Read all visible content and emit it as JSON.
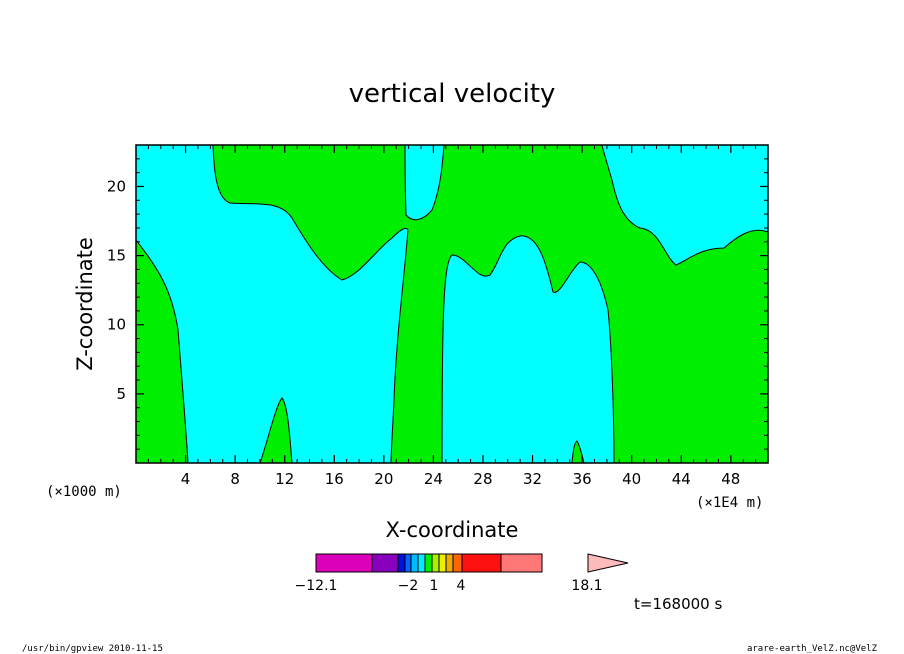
{
  "chart_data": {
    "type": "heatmap",
    "title": "vertical velocity",
    "xlabel": "X-coordinate",
    "ylabel": "Z-coordinate",
    "x_scale_note": "(×1E4 m)",
    "y_scale_note": "(×1000 m)",
    "xlim": [
      0,
      51
    ],
    "ylim": [
      0,
      23
    ],
    "xticks": [
      4,
      8,
      12,
      16,
      20,
      24,
      28,
      32,
      36,
      40,
      44,
      48
    ],
    "yticks": [
      5,
      10,
      15,
      20
    ],
    "fields": [
      {
        "name": "positive",
        "color": "#00ee00"
      },
      {
        "name": "negative",
        "color": "#00eeff"
      }
    ],
    "colorbar": {
      "labels": [
        "-12.1",
        "-2",
        "1",
        "4",
        "18.1"
      ],
      "colors": [
        "#dd00bb",
        "#8800bb",
        "#0011dd",
        "#0066ff",
        "#00bbff",
        "#00eeff",
        "#00ee00",
        "#aaee00",
        "#eeee00",
        "#eeaa00",
        "#ff6600",
        "#ff1111",
        "#ff7777",
        "#ffbbbb"
      ]
    }
  },
  "time_label": "t=168000 s",
  "footer": {
    "left": "/usr/bin/gpview  2010-11-15",
    "right": "arare-earth_VelZ.nc@VelZ"
  }
}
